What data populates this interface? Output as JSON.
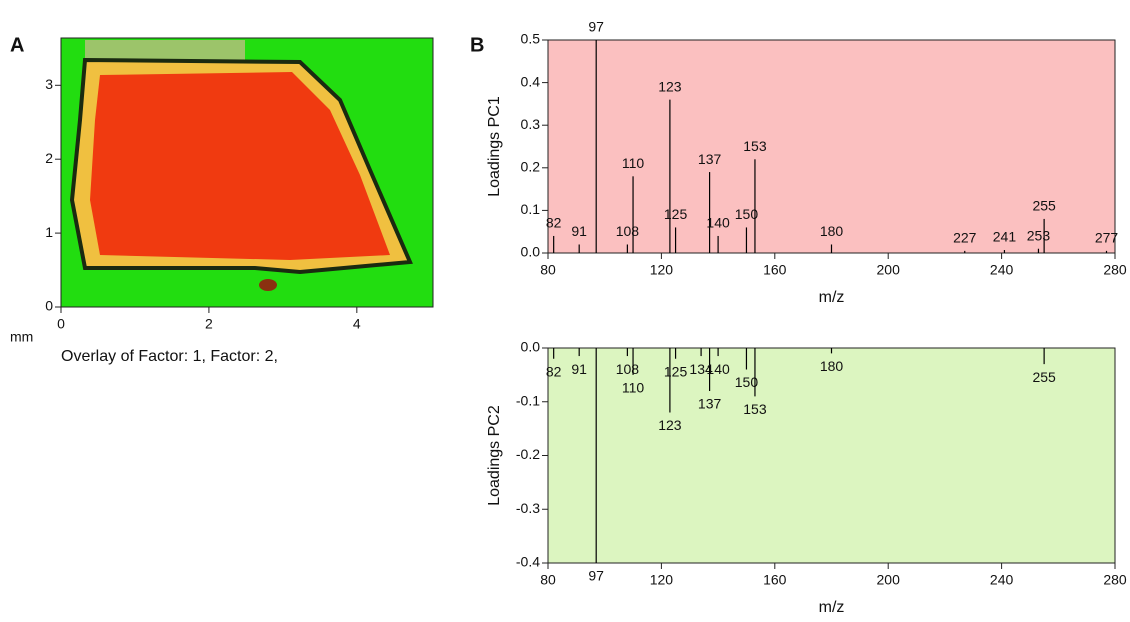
{
  "chart_data": [
    {
      "type": "image",
      "panel_label": "A",
      "xlabel": "mm",
      "caption": "Overlay of Factor: 1, Factor: 2,",
      "xlim": [
        0,
        5.03
      ],
      "xticks": [
        0,
        2,
        4
      ],
      "ylim": [
        0,
        3.64
      ],
      "yticks": [
        0,
        1,
        2,
        3
      ]
    },
    {
      "type": "stem",
      "panel_label": "B",
      "xlabel": "m/z",
      "ylabel": "Loadings PC1",
      "color": "#000000",
      "background": "#fbc0c0",
      "x": [
        82,
        91,
        97,
        108,
        110,
        123,
        125,
        137,
        140,
        150,
        153,
        180,
        227,
        241,
        253,
        255,
        277
      ],
      "values": [
        0.04,
        0.02,
        0.5,
        0.02,
        0.18,
        0.36,
        0.06,
        0.19,
        0.04,
        0.06,
        0.22,
        0.02,
        0.005,
        0.007,
        0.01,
        0.08,
        0.005
      ],
      "xlim": [
        80,
        280
      ],
      "xticks": [
        80,
        120,
        160,
        200,
        240,
        280
      ],
      "ylim": [
        0,
        0.5
      ],
      "yticks": [
        {
          "value": 0,
          "label": "0.0"
        },
        0.1,
        0.2,
        0.3,
        0.4,
        0.5
      ]
    },
    {
      "type": "stem",
      "xlabel": "m/z",
      "ylabel": "Loadings PC2",
      "color": "#000000",
      "background": "#dcf5c0",
      "x": [
        82,
        91,
        97,
        108,
        110,
        123,
        125,
        134,
        137,
        140,
        150,
        153,
        180,
        255
      ],
      "values": [
        -0.02,
        -0.015,
        -0.4,
        -0.015,
        -0.05,
        -0.12,
        -0.02,
        -0.015,
        -0.08,
        -0.015,
        -0.04,
        -0.09,
        -0.01,
        -0.03
      ],
      "xlim": [
        80,
        280
      ],
      "xticks": [
        80,
        120,
        160,
        200,
        240,
        280
      ],
      "ylim": [
        -0.4,
        0
      ],
      "yticks": [
        {
          "value": 0,
          "label": "0.0"
        },
        -0.1,
        -0.2,
        -0.3,
        -0.4
      ]
    }
  ]
}
